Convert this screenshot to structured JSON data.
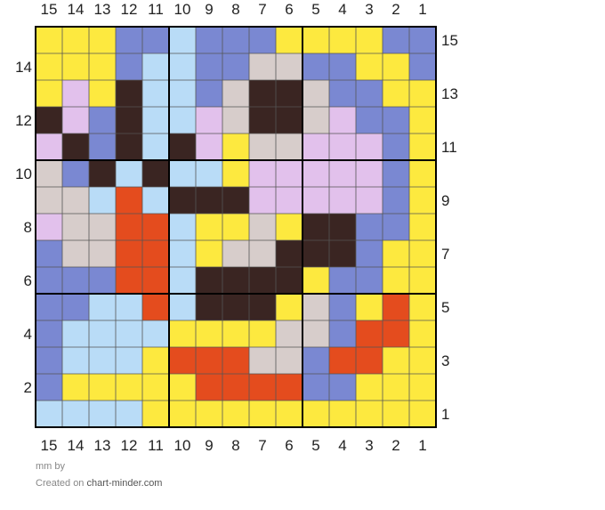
{
  "chart_data": {
    "type": "heatmap",
    "columns": 15,
    "rows": 15,
    "column_labels": [
      "15",
      "14",
      "13",
      "12",
      "11",
      "10",
      "9",
      "8",
      "7",
      "6",
      "5",
      "4",
      "3",
      "2",
      "1"
    ],
    "left_row_labels": [
      "",
      "14",
      "",
      "12",
      "",
      "10",
      "",
      "8",
      "",
      "6",
      "",
      "4",
      "",
      "2",
      ""
    ],
    "right_row_labels": [
      "15",
      "",
      "13",
      "",
      "11",
      "",
      "9",
      "",
      "7",
      "",
      "5",
      "",
      "3",
      "",
      "1"
    ],
    "major_grid_every": 5,
    "palette": {
      "Y": "#FDE93F",
      "B": "#7A88D2",
      "L": "#B9DCF7",
      "K": "#3A2522",
      "G": "#D7CDCB",
      "P": "#E2C1EC",
      "R": "#E44C1E"
    },
    "grid": [
      "YYYBBLBBBYYYYBB",
      "YYYBLLBBGGBBYYB",
      "YPYKLLBGKKGBBYY",
      "KPBKLLPGKKGPBBY",
      "PKBKLKPYGGPPPBY",
      "GBKLKLLYPPPPPBY",
      "GGLRLKKKPPPPPBY",
      "PGGRRLYYGYKKBBY",
      "BGGRRLYGGKKKBYY",
      "BBBRRLKKKKYBBYY",
      "BBLLRLKKKYGBYRY",
      "BLLLLYYYYGGBRRY",
      "BLLLYRRRGGBRRYY",
      "BYYYYYRRRRBBYYY",
      "LLLLYYYYYYYYYYY"
    ]
  },
  "footer": {
    "line1_name": "mm",
    "line1_by": "by",
    "line2_prefix": "Created on",
    "line2_site": "chart-minder.com"
  }
}
